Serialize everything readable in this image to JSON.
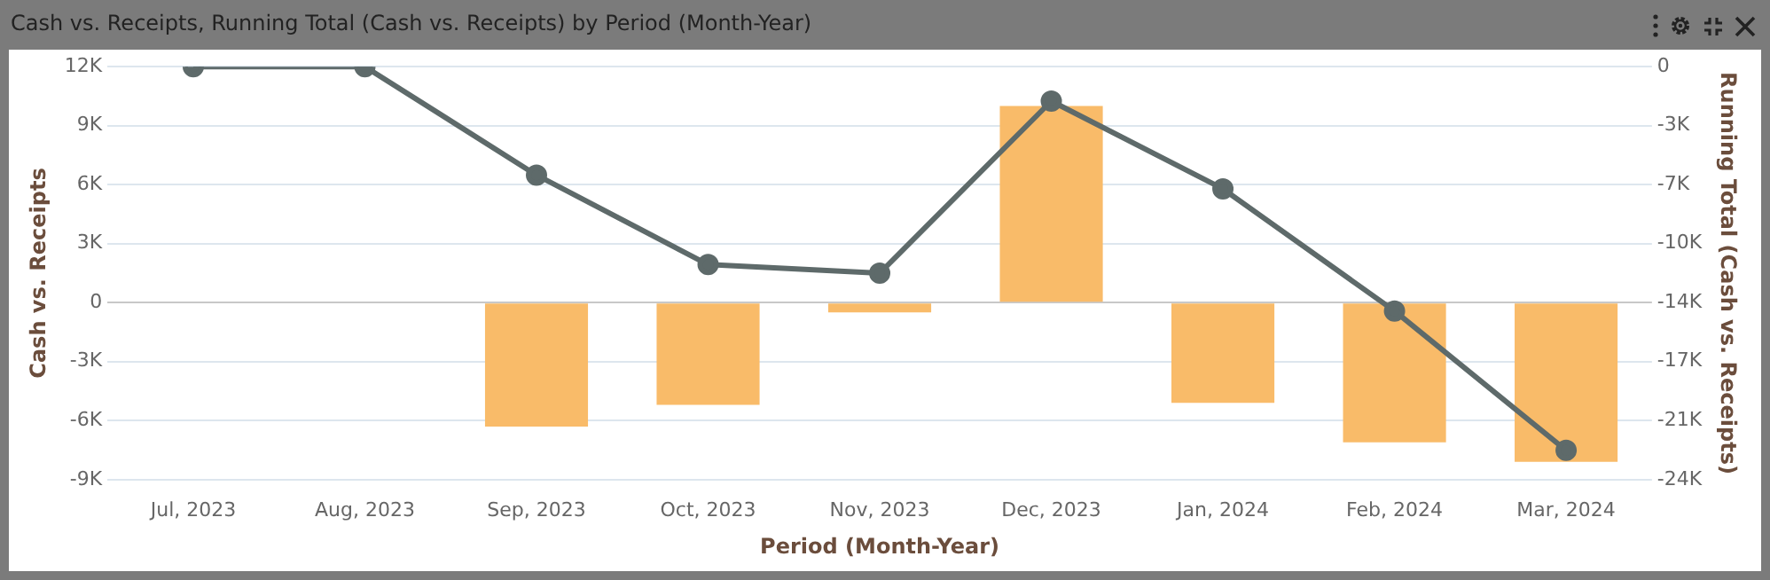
{
  "chart_data": {
    "type": "bar",
    "title": "Cash vs. Receipts, Running Total (Cash vs. Receipts) by Period (Month-Year)",
    "xlabel": "Period (Month-Year)",
    "ylabel": "Cash vs. Receipts",
    "y2label": "Running Total (Cash vs. Receipts)",
    "categories": [
      "Jul, 2023",
      "Aug, 2023",
      "Sep, 2023",
      "Oct, 2023",
      "Nov, 2023",
      "Dec, 2023",
      "Jan, 2024",
      "Feb, 2024",
      "Mar, 2024"
    ],
    "series": [
      {
        "color": "#f9bb69",
        "values": [
          0,
          0,
          -6300,
          -5200,
          -500,
          10000,
          -5100,
          -7100,
          -8100
        ]
      },
      {
        "type": "line",
        "axis": "y2",
        "color": "#5e6a6a",
        "marker": "circle",
        "values": [
          0,
          0,
          -6300,
          -11500,
          -12000,
          -2000,
          -7100,
          -14200,
          -22300
        ]
      }
    ],
    "ylim": [
      -9000,
      12000
    ],
    "yticks": [
      {
        "value": -9000,
        "label": "-9K"
      },
      {
        "value": -6000,
        "label": "-6K"
      },
      {
        "value": -3000,
        "label": "-3K"
      },
      0,
      {
        "value": 3000,
        "label": "3K"
      },
      {
        "value": 6000,
        "label": "6K"
      },
      {
        "value": 9000,
        "label": "9K"
      },
      {
        "value": 12000,
        "label": "12K"
      }
    ],
    "y2lim": [
      -24000,
      0
    ],
    "y2ticks": [
      {
        "value": -24000,
        "label": "-24K"
      },
      {
        "value": -20571,
        "label": "-21K"
      },
      {
        "value": -17143,
        "label": "-17K"
      },
      {
        "value": -13714,
        "label": "-14K"
      },
      {
        "value": -10286,
        "label": "-10K"
      },
      {
        "value": -6857,
        "label": "-7K"
      },
      {
        "value": -3429,
        "label": "-3K"
      },
      0
    ],
    "grid": "y",
    "legend": false
  }
}
